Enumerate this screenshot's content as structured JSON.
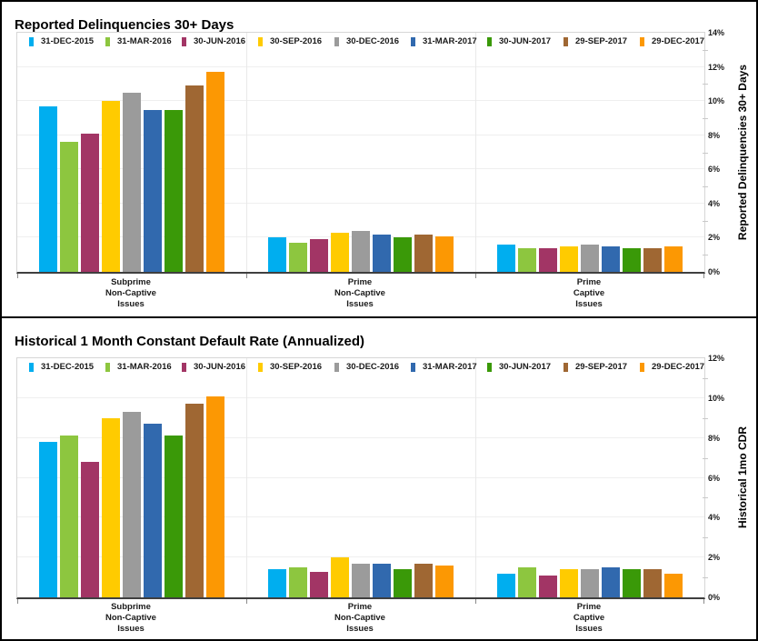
{
  "chart_data": [
    {
      "type": "bar",
      "title": "Reported Delinquencies 30+ Days",
      "ylabel": "Reported Delinquencies 30+ Days",
      "xlabel": "",
      "ylim": [
        0,
        14
      ],
      "y_major_step": 2,
      "y_minor_step": 1,
      "tick_suffix": "%",
      "grid": true,
      "legend_position": "top",
      "categories": [
        [
          "Subprime",
          "Non-Captive",
          "Issues"
        ],
        [
          "Prime",
          "Non-Captive",
          "Issues"
        ],
        [
          "Prime",
          "Captive",
          "Issues"
        ]
      ],
      "series": [
        {
          "name": "31-DEC-2015",
          "color": "#00AEEF",
          "values": [
            9.7,
            2.0,
            1.6
          ]
        },
        {
          "name": "31-MAR-2016",
          "color": "#8DC63F",
          "values": [
            7.6,
            1.7,
            1.4
          ]
        },
        {
          "name": "30-JUN-2016",
          "color": "#A23565",
          "values": [
            8.1,
            1.9,
            1.4
          ]
        },
        {
          "name": "30-SEP-2016",
          "color": "#FFCB00",
          "values": [
            10.0,
            2.3,
            1.5
          ]
        },
        {
          "name": "30-DEC-2016",
          "color": "#9B9B9B",
          "values": [
            10.5,
            2.4,
            1.6
          ]
        },
        {
          "name": "31-MAR-2017",
          "color": "#3169AE",
          "values": [
            9.5,
            2.2,
            1.5
          ]
        },
        {
          "name": "30-JUN-2017",
          "color": "#3A9908",
          "values": [
            9.5,
            2.0,
            1.4
          ]
        },
        {
          "name": "29-SEP-2017",
          "color": "#9F6733",
          "values": [
            10.9,
            2.2,
            1.4
          ]
        },
        {
          "name": "29-DEC-2017",
          "color": "#FC9803",
          "values": [
            11.7,
            2.1,
            1.5
          ]
        }
      ]
    },
    {
      "type": "bar",
      "title": "Historical 1 Month Constant Default Rate (Annualized)",
      "ylabel": "Historical 1mo CDR",
      "xlabel": "",
      "ylim": [
        0,
        12
      ],
      "y_major_step": 2,
      "y_minor_step": 1,
      "tick_suffix": "%",
      "grid": true,
      "legend_position": "top",
      "categories": [
        [
          "Subprime",
          "Non-Captive",
          "Issues"
        ],
        [
          "Prime",
          "Non-Captive",
          "Issues"
        ],
        [
          "Prime",
          "Captive",
          "Issues"
        ]
      ],
      "series": [
        {
          "name": "31-DEC-2015",
          "color": "#00AEEF",
          "values": [
            7.8,
            1.4,
            1.2
          ]
        },
        {
          "name": "31-MAR-2016",
          "color": "#8DC63F",
          "values": [
            8.1,
            1.5,
            1.5
          ]
        },
        {
          "name": "30-JUN-2016",
          "color": "#A23565",
          "values": [
            6.8,
            1.3,
            1.1
          ]
        },
        {
          "name": "30-SEP-2016",
          "color": "#FFCB00",
          "values": [
            9.0,
            2.0,
            1.4
          ]
        },
        {
          "name": "30-DEC-2016",
          "color": "#9B9B9B",
          "values": [
            9.3,
            1.7,
            1.4
          ]
        },
        {
          "name": "31-MAR-2017",
          "color": "#3169AE",
          "values": [
            8.7,
            1.7,
            1.5
          ]
        },
        {
          "name": "30-JUN-2017",
          "color": "#3A9908",
          "values": [
            8.1,
            1.4,
            1.4
          ]
        },
        {
          "name": "29-SEP-2017",
          "color": "#9F6733",
          "values": [
            9.7,
            1.7,
            1.4
          ]
        },
        {
          "name": "29-DEC-2017",
          "color": "#FC9803",
          "values": [
            10.1,
            1.6,
            1.2
          ]
        }
      ]
    }
  ]
}
